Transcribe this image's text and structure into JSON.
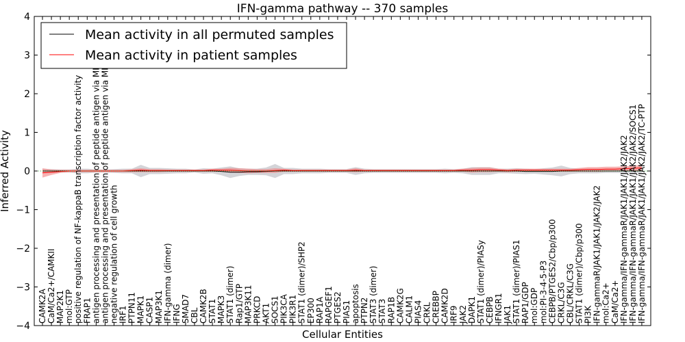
{
  "chart_data": {
    "type": "line",
    "title": "IFN-gamma pathway -- 370 samples",
    "xlabel": "Cellular Entities",
    "ylabel": "Inferred Activity",
    "ylim": [
      -4,
      4
    ],
    "yticks": [
      4,
      3,
      2,
      1,
      0,
      -1,
      -2,
      -3,
      -4
    ],
    "legend": {
      "placement": "top-left"
    },
    "categories": [
      "CAMK2A",
      "CaM/Ca2+/CAMKII",
      "MAP2K1",
      "mol:GTP",
      "positive regulation of NF-kappaB transcription factor activity",
      "FRAP1",
      "antigen processing and presentation of peptide antigen via MHC class I",
      "antigen processing and presentation of peptide antigen via MHC class II",
      "negative regulation of cell growth",
      "IRF1",
      "PTPN11",
      "MAPK1",
      "CASP1",
      "MAP3K1",
      "IFN-gamma (dimer)",
      "IFNG",
      "SMAD7",
      "CBL",
      "CAMK2B",
      "STAT1",
      "MAPK3",
      "STAT1 (dimer)",
      "Rap1/GTP",
      "MAP3K11",
      "PRKCD",
      "AKT1",
      "SOCS1",
      "PIK3CA",
      "PIK3R1",
      "STAT1 (dimer)/SHP2",
      "EP300",
      "RAP1A",
      "RAPGEF1",
      "PTGES2",
      "PIAS1",
      "apoptosis",
      "PTPN2",
      "STAT3 (dimer)",
      "STAT3",
      "RAP1B",
      "CAMK2G",
      "CALM1",
      "PIAS4",
      "CRKL",
      "CREBBP",
      "CAMK2D",
      "IRF9",
      "JAK2",
      "DAPK1",
      "STAT1 (dimer)/PIASy",
      "CEBPB",
      "IFNGR1",
      "JAK1",
      "STAT1 (dimer)/PIAS1",
      "RAP1/GDP",
      "mol:GDP",
      "mol:PI-3-4-5-P3",
      "CEBPB/PTGES2/Cbp/p300",
      "CRKL/C3G",
      "CBL/CRKL/C3G",
      "STAT1 (dimer)/Cbp/p300",
      "PI3K",
      "IFN-gammaR/JAK1/JAK1/JAK2/JAK2",
      "mol:Ca2+",
      "CaM/Ca2+",
      "IFN-gamma/IFN-gammaR/JAK1/JAK1/JAK2/JAK2",
      "IFN-gamma/IFN-gammaR/JAK1/JAK1/JAK2/JAK2/SOCS1",
      "IFN-gamma/IFN-gammaR/JAK1/JAK1/JAK2/JAK2/TC-PTP"
    ],
    "series": [
      {
        "name": "Mean activity in all permuted samples",
        "color": "#000000",
        "band_color": "#b0b0b8",
        "values": [
          0.0,
          0.0,
          0.0,
          0.0,
          0.0,
          0.0,
          0.0,
          0.0,
          0.0,
          0.0,
          0.0,
          0.0,
          0.0,
          0.0,
          0.0,
          0.0,
          0.0,
          0.0,
          0.0,
          0.0,
          -0.01,
          -0.03,
          -0.03,
          -0.02,
          -0.02,
          -0.01,
          0.0,
          0.0,
          0.0,
          0.0,
          0.0,
          0.0,
          0.0,
          0.0,
          0.0,
          0.0,
          0.0,
          0.0,
          0.0,
          0.0,
          0.0,
          0.0,
          0.0,
          0.0,
          0.0,
          0.0,
          0.0,
          0.0,
          0.0,
          0.0,
          0.0,
          0.0,
          0.0,
          0.0,
          -0.01,
          -0.01,
          -0.01,
          -0.01,
          0.0,
          0.0,
          0.0,
          0.0,
          0.0,
          0.0,
          0.0,
          0.0,
          0.0,
          0.0
        ],
        "spread": [
          0.05,
          0.05,
          0.04,
          0.04,
          0.06,
          0.06,
          0.04,
          0.04,
          0.05,
          0.06,
          0.06,
          0.16,
          0.08,
          0.08,
          0.07,
          0.06,
          0.06,
          0.04,
          0.07,
          0.06,
          0.1,
          0.15,
          0.1,
          0.08,
          0.08,
          0.1,
          0.18,
          0.08,
          0.08,
          0.06,
          0.06,
          0.06,
          0.05,
          0.05,
          0.05,
          0.1,
          0.06,
          0.05,
          0.05,
          0.05,
          0.05,
          0.05,
          0.05,
          0.05,
          0.05,
          0.06,
          0.05,
          0.06,
          0.1,
          0.1,
          0.1,
          0.06,
          0.06,
          0.07,
          0.07,
          0.06,
          0.08,
          0.1,
          0.14,
          0.08,
          0.06,
          0.06,
          0.06,
          0.05,
          0.05,
          0.05,
          0.05,
          0.05
        ]
      },
      {
        "name": "Mean activity in patient samples",
        "color": "#ff0000",
        "band_color": "#f08080",
        "values": [
          -0.05,
          -0.03,
          -0.01,
          0.0,
          0.0,
          0.0,
          0.0,
          0.0,
          0.0,
          0.0,
          0.01,
          0.02,
          0.01,
          0.01,
          0.01,
          0.01,
          0.01,
          0.01,
          0.01,
          0.02,
          0.02,
          0.02,
          0.01,
          0.0,
          0.0,
          0.0,
          0.01,
          0.02,
          0.01,
          0.01,
          0.01,
          0.01,
          0.01,
          0.01,
          0.01,
          0.02,
          0.01,
          0.01,
          0.01,
          0.01,
          0.01,
          0.01,
          0.01,
          0.01,
          0.01,
          0.01,
          0.01,
          0.02,
          0.02,
          0.03,
          0.03,
          0.02,
          0.01,
          0.02,
          0.02,
          0.02,
          0.02,
          0.02,
          0.02,
          0.02,
          0.03,
          0.04,
          0.04,
          0.05,
          0.05,
          0.06,
          0.07,
          0.08
        ],
        "spread": [
          0.12,
          0.07,
          0.04,
          0.03,
          0.03,
          0.03,
          0.03,
          0.03,
          0.03,
          0.03,
          0.04,
          0.05,
          0.04,
          0.04,
          0.03,
          0.03,
          0.03,
          0.03,
          0.03,
          0.04,
          0.04,
          0.06,
          0.06,
          0.06,
          0.05,
          0.05,
          0.06,
          0.04,
          0.03,
          0.03,
          0.03,
          0.03,
          0.03,
          0.03,
          0.03,
          0.05,
          0.03,
          0.03,
          0.03,
          0.03,
          0.03,
          0.03,
          0.03,
          0.03,
          0.03,
          0.03,
          0.03,
          0.04,
          0.06,
          0.06,
          0.06,
          0.04,
          0.04,
          0.04,
          0.04,
          0.04,
          0.04,
          0.04,
          0.04,
          0.04,
          0.05,
          0.06,
          0.06,
          0.06,
          0.06,
          0.06,
          0.07,
          0.08
        ]
      }
    ],
    "reference_line": {
      "y": 0,
      "color": "#2ca02c",
      "style": "dotted"
    }
  }
}
